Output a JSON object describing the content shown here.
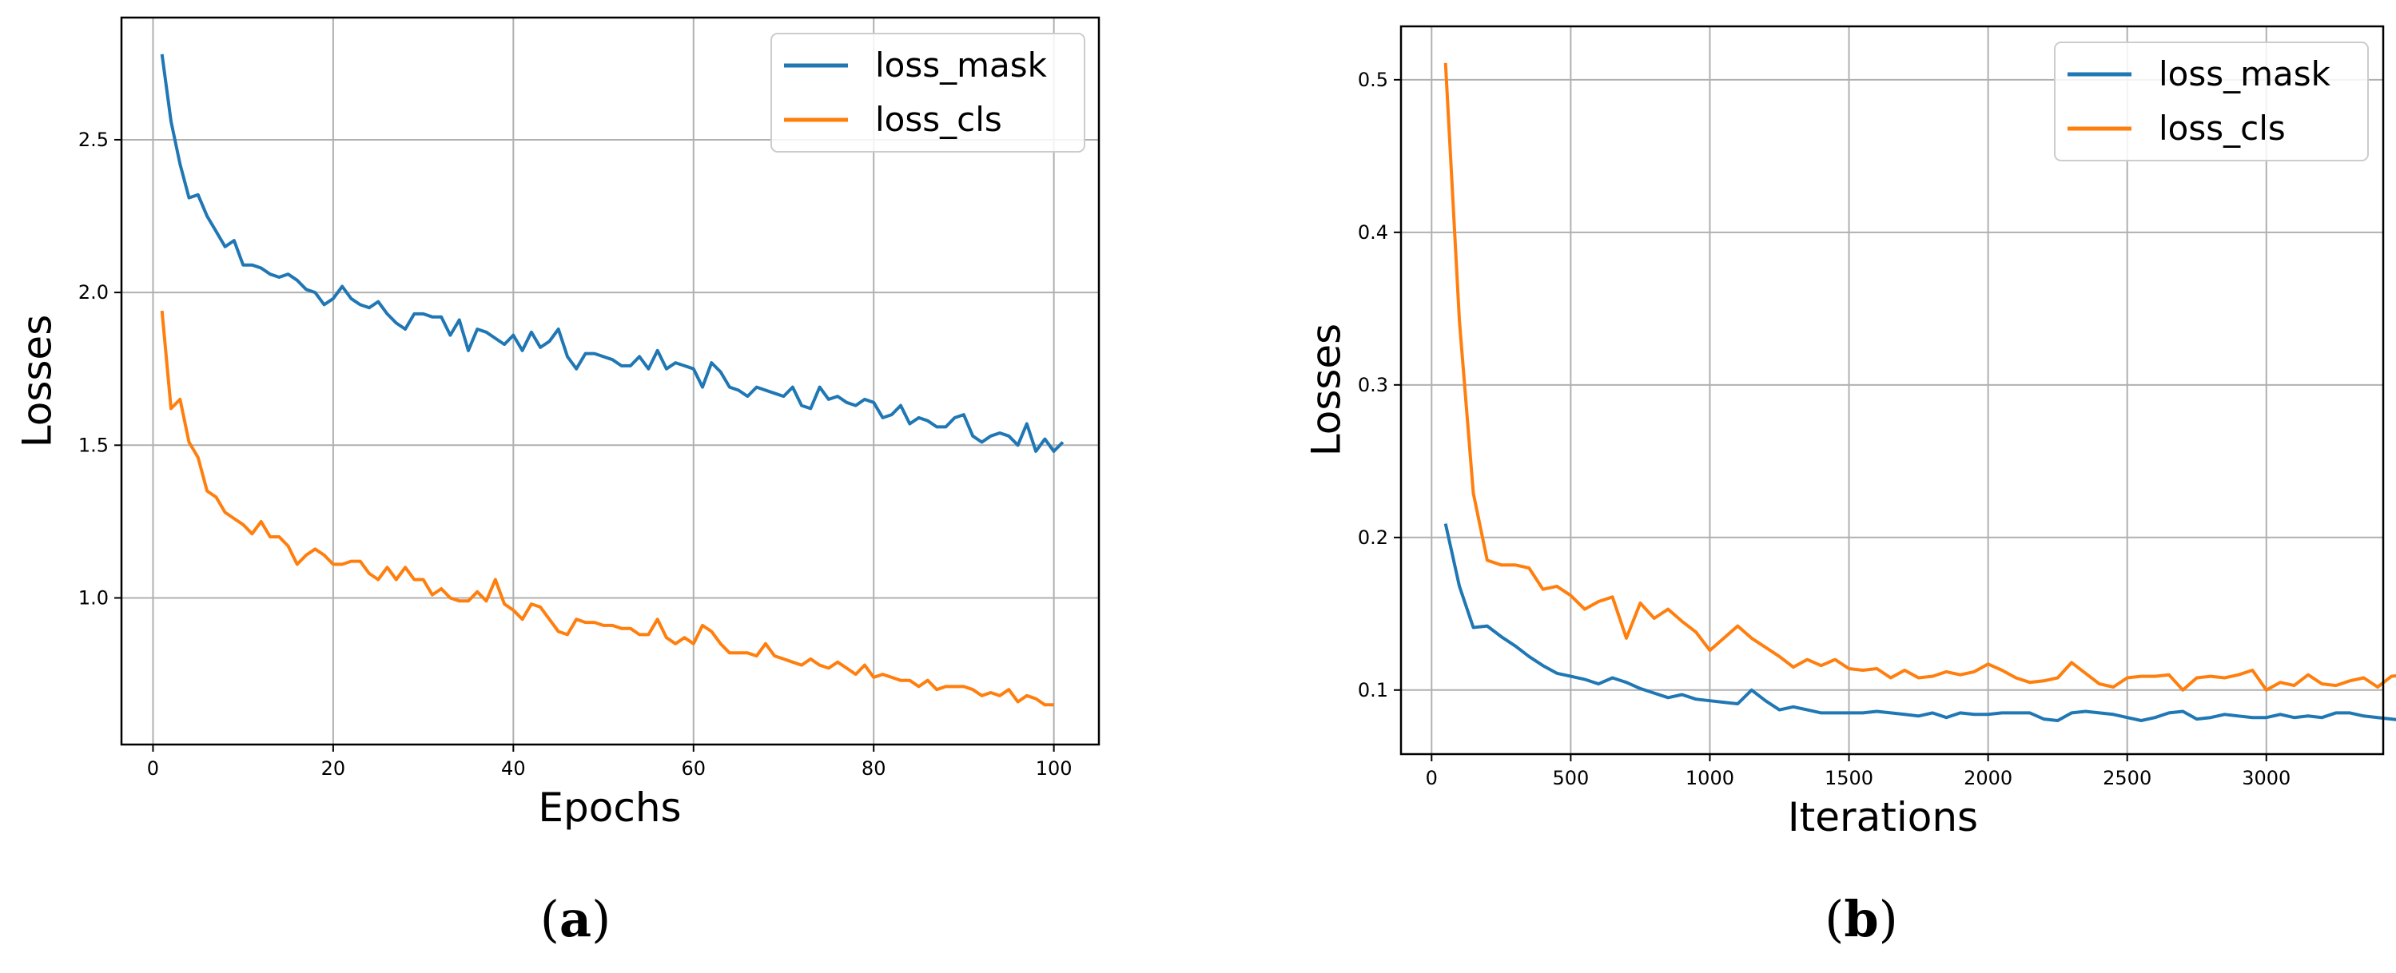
{
  "chart_data": [
    {
      "type": "line",
      "panel_label": "a",
      "xlabel": "Epochs",
      "ylabel": "Losses",
      "xlim": [
        -3.5,
        105
      ],
      "ylim": [
        0.52,
        2.9
      ],
      "xticks": [
        0,
        20,
        40,
        60,
        80,
        100
      ],
      "yticks": [
        1.0,
        1.5,
        2.0,
        2.5
      ],
      "xtick_labels": [
        "0",
        "20",
        "40",
        "60",
        "80",
        "100"
      ],
      "ytick_labels": [
        "1.0",
        "1.5",
        "2.0",
        "2.5"
      ],
      "grid": true,
      "legend": "top-right",
      "x_start": 1,
      "x_step": 1,
      "series": [
        {
          "name": "loss_mask",
          "color": "#1f77b4",
          "values": [
            2.78,
            2.56,
            2.42,
            2.31,
            2.32,
            2.25,
            2.2,
            2.15,
            2.17,
            2.09,
            2.09,
            2.08,
            2.06,
            2.05,
            2.06,
            2.04,
            2.01,
            2.0,
            1.96,
            1.98,
            2.02,
            1.98,
            1.96,
            1.95,
            1.97,
            1.93,
            1.9,
            1.88,
            1.93,
            1.93,
            1.92,
            1.92,
            1.86,
            1.91,
            1.81,
            1.88,
            1.87,
            1.85,
            1.83,
            1.86,
            1.81,
            1.87,
            1.82,
            1.84,
            1.88,
            1.79,
            1.75,
            1.8,
            1.8,
            1.79,
            1.78,
            1.76,
            1.76,
            1.79,
            1.75,
            1.81,
            1.75,
            1.77,
            1.76,
            1.75,
            1.69,
            1.77,
            1.74,
            1.69,
            1.68,
            1.66,
            1.69,
            1.68,
            1.67,
            1.66,
            1.69,
            1.63,
            1.62,
            1.69,
            1.65,
            1.66,
            1.64,
            1.63,
            1.65,
            1.64,
            1.59,
            1.6,
            1.63,
            1.57,
            1.59,
            1.58,
            1.56,
            1.56,
            1.59,
            1.6,
            1.53,
            1.51,
            1.53,
            1.54,
            1.53,
            1.5,
            1.57,
            1.48,
            1.52,
            1.48,
            1.51
          ]
        },
        {
          "name": "loss_cls",
          "color": "#ff7f0e",
          "values": [
            1.94,
            1.62,
            1.65,
            1.51,
            1.46,
            1.35,
            1.33,
            1.28,
            1.26,
            1.24,
            1.21,
            1.25,
            1.2,
            1.2,
            1.17,
            1.11,
            1.14,
            1.16,
            1.14,
            1.11,
            1.11,
            1.12,
            1.12,
            1.08,
            1.06,
            1.1,
            1.06,
            1.1,
            1.06,
            1.06,
            1.01,
            1.03,
            1.0,
            0.99,
            0.99,
            1.02,
            0.99,
            1.06,
            0.98,
            0.96,
            0.93,
            0.98,
            0.97,
            0.93,
            0.89,
            0.88,
            0.93,
            0.92,
            0.92,
            0.91,
            0.91,
            0.9,
            0.9,
            0.88,
            0.88,
            0.93,
            0.87,
            0.85,
            0.87,
            0.85,
            0.91,
            0.89,
            0.85,
            0.82,
            0.82,
            0.82,
            0.81,
            0.85,
            0.81,
            0.8,
            0.79,
            0.78,
            0.8,
            0.78,
            0.77,
            0.79,
            0.77,
            0.75,
            0.78,
            0.74,
            0.75,
            0.74,
            0.73,
            0.73,
            0.71,
            0.73,
            0.7,
            0.71,
            0.71,
            0.71,
            0.7,
            0.68,
            0.69,
            0.68,
            0.7,
            0.66,
            0.68,
            0.67,
            0.65,
            0.65
          ]
        }
      ]
    },
    {
      "type": "line",
      "panel_label": "b",
      "xlabel": "Iterations",
      "ylabel": "Losses",
      "xlim": [
        -110,
        3420
      ],
      "ylim": [
        0.058,
        0.535
      ],
      "xticks": [
        0,
        500,
        1000,
        1500,
        2000,
        2500,
        3000
      ],
      "yticks": [
        0.1,
        0.2,
        0.3,
        0.4,
        0.5
      ],
      "xtick_labels": [
        "0",
        "500",
        "1000",
        "1500",
        "2000",
        "2500",
        "3000"
      ],
      "ytick_labels": [
        "0.1",
        "0.2",
        "0.3",
        "0.4",
        "0.5"
      ],
      "grid": true,
      "legend": "top-right",
      "x_start": 50,
      "x_step": 50,
      "series": [
        {
          "name": "loss_mask",
          "color": "#1f77b4",
          "values": [
            0.209,
            0.168,
            0.141,
            0.142,
            0.135,
            0.129,
            0.122,
            0.116,
            0.111,
            0.109,
            0.107,
            0.104,
            0.108,
            0.105,
            0.101,
            0.098,
            0.095,
            0.097,
            0.094,
            0.093,
            0.092,
            0.091,
            0.1,
            0.093,
            0.087,
            0.089,
            0.087,
            0.085,
            0.085,
            0.085,
            0.085,
            0.086,
            0.085,
            0.084,
            0.083,
            0.085,
            0.082,
            0.085,
            0.084,
            0.084,
            0.085,
            0.085,
            0.085,
            0.081,
            0.08,
            0.085,
            0.086,
            0.085,
            0.084,
            0.082,
            0.08,
            0.082,
            0.085,
            0.086,
            0.081,
            0.082,
            0.084,
            0.083,
            0.082,
            0.082,
            0.084,
            0.082,
            0.083,
            0.082,
            0.085,
            0.085,
            0.083,
            0.082,
            0.081,
            0.08
          ]
        },
        {
          "name": "loss_cls",
          "color": "#ff7f0e",
          "values": [
            0.511,
            0.342,
            0.229,
            0.185,
            0.182,
            0.182,
            0.18,
            0.166,
            0.168,
            0.162,
            0.153,
            0.158,
            0.161,
            0.134,
            0.157,
            0.147,
            0.153,
            0.145,
            0.138,
            0.126,
            0.134,
            0.142,
            0.134,
            0.128,
            0.122,
            0.115,
            0.12,
            0.116,
            0.12,
            0.114,
            0.113,
            0.114,
            0.108,
            0.113,
            0.108,
            0.109,
            0.112,
            0.11,
            0.112,
            0.117,
            0.113,
            0.108,
            0.105,
            0.106,
            0.108,
            0.118,
            0.111,
            0.104,
            0.102,
            0.108,
            0.109,
            0.109,
            0.11,
            0.1,
            0.108,
            0.109,
            0.108,
            0.11,
            0.113,
            0.1,
            0.105,
            0.103,
            0.11,
            0.104,
            0.103,
            0.106,
            0.108,
            0.102,
            0.109,
            0.11
          ]
        }
      ]
    }
  ]
}
